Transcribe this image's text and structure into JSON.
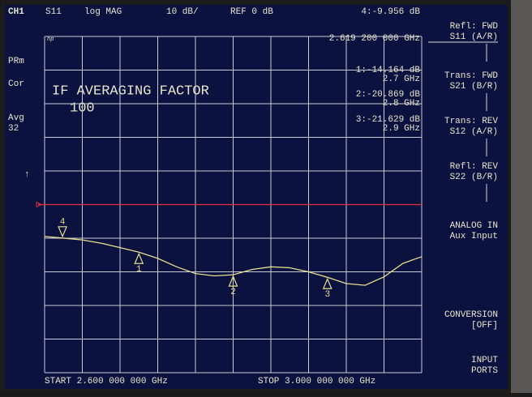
{
  "chart_data": {
    "type": "line",
    "channel": "CH1",
    "parameter": "S11",
    "format": "log MAG",
    "scale": "10 dB/",
    "reference": "REF 0 dB",
    "start_label": "START  2.600 000 000 GHz",
    "stop_label": "STOP  3.000 000 000 GHz",
    "annotation": "IF AVERAGING FACTOR",
    "annotation_value": "100",
    "status": [
      "PRm",
      "Cor",
      "Avg",
      "32",
      "↑"
    ],
    "logo": "hp",
    "xlim": [
      2.6,
      3.0
    ],
    "ylim": [
      -50,
      50
    ],
    "reference_line": 0,
    "reference_color": "#e0303a",
    "series": [
      {
        "name": "S11",
        "color": "#e6df8e",
        "x": [
          2.6,
          2.619,
          2.64,
          2.66,
          2.68,
          2.7,
          2.72,
          2.74,
          2.76,
          2.78,
          2.8,
          2.82,
          2.84,
          2.86,
          2.88,
          2.9,
          2.92,
          2.94,
          2.96,
          2.98,
          3.0
        ],
        "values": [
          -9.5,
          -9.956,
          -10.5,
          -11.5,
          -12.8,
          -14.164,
          -16,
          -18.5,
          -20.5,
          -21.2,
          -20.869,
          -19.3,
          -18.5,
          -18.8,
          -20,
          -21.629,
          -23.5,
          -24,
          -21.5,
          -17.5,
          -15.5
        ]
      }
    ],
    "markers": {
      "names": [
        "1",
        "2",
        "3",
        "4"
      ],
      "x": [
        2.7,
        2.8,
        2.9,
        2.619
      ],
      "values": [
        -14.164,
        -20.869,
        -21.629,
        -9.956
      ]
    },
    "readouts": [
      {
        "value": "4:-9.956  dB",
        "freq": "2.619 200 000 GHz"
      },
      {
        "value": "1:-14.164 dB",
        "freq": "2.7 GHz"
      },
      {
        "value": "2:-20.869 dB",
        "freq": "2.8 GHz"
      },
      {
        "value": "3:-21.629 dB",
        "freq": "2.9 GHz"
      }
    ]
  },
  "softkeys": [
    [
      "Refl: FWD",
      "S11 (A/R)"
    ],
    [
      "Trans: FWD",
      "S21 (B/R)"
    ],
    [
      "Trans: REV",
      "S12 (A/R)"
    ],
    [
      "Refl: REV",
      "S22 (B/R)"
    ],
    [
      "ANALOG IN",
      "Aux Input"
    ],
    [
      "CONVERSION",
      "[OFF]"
    ],
    [
      "INPUT",
      "PORTS"
    ]
  ]
}
